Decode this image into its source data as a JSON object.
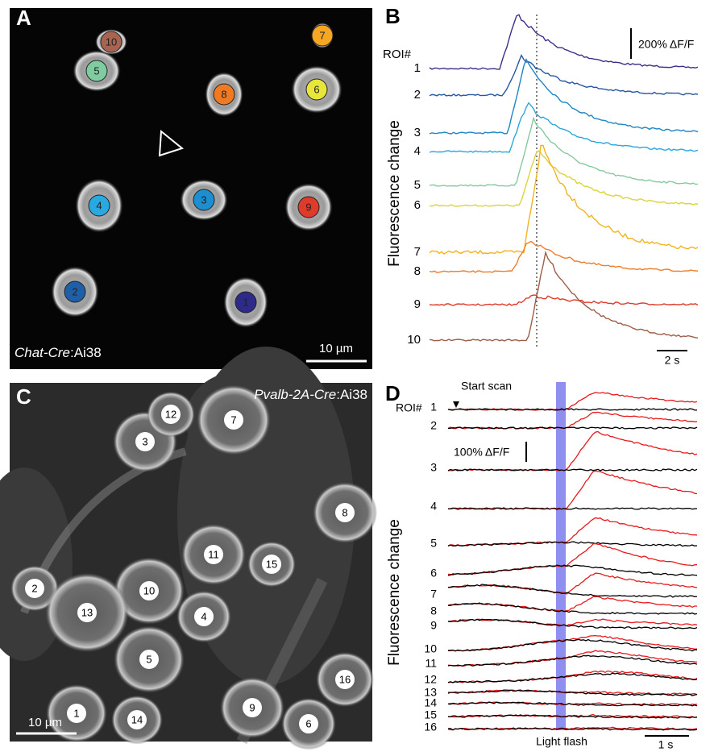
{
  "panel_a": {
    "letter": "A",
    "roi_labels": [
      "1",
      "2",
      "3",
      "4",
      "5",
      "6",
      "7",
      "8",
      "9",
      "10"
    ],
    "genotype": "Chat-Cre",
    "reporter": ":Ai38",
    "scale_bar": "10 µm"
  },
  "panel_b": {
    "letter": "B",
    "roi_header": "ROI#",
    "roi_labels": [
      "1",
      "2",
      "3",
      "4",
      "5",
      "6",
      "7",
      "8",
      "9",
      "10"
    ],
    "y_label": "Fluorescence change",
    "amplitude_scale": "200% ΔF/F",
    "time_scale": "2 s"
  },
  "panel_c": {
    "letter": "C",
    "roi_labels": [
      "1",
      "2",
      "3",
      "4",
      "5",
      "6",
      "7",
      "8",
      "9",
      "10",
      "11",
      "12",
      "13",
      "14",
      "15",
      "16"
    ],
    "genotype": "Pvalb-2A-Cre",
    "reporter": ":Ai38",
    "scale_bar": "10 µm"
  },
  "panel_d": {
    "letter": "D",
    "start_label": "Start scan",
    "roi_header": "ROI#",
    "roi_labels": [
      "1",
      "2",
      "3",
      "4",
      "5",
      "6",
      "7",
      "8",
      "9",
      "10",
      "11",
      "12",
      "13",
      "14",
      "15",
      "16"
    ],
    "y_label": "Fluorescence change",
    "amplitude_scale": "100% ΔF/F",
    "time_scale": "1 s",
    "stimulus_label": "Light flash"
  }
}
